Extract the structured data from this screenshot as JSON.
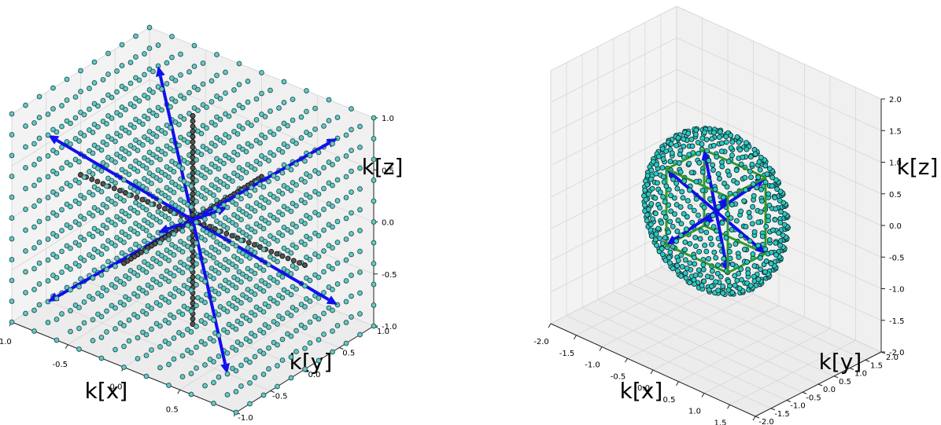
{
  "chart_data": [
    {
      "type": "scatter",
      "projection": "3d",
      "description_of_marks": "cubic lattice of points inside the unit cube, black coordinate axes through origin, blue arrows along cube body diagonals",
      "xlabel": "k[x]",
      "ylabel": "k[y]",
      "zlabel": "k[z]",
      "xlim": [
        -1.0,
        1.0
      ],
      "ylim": [
        -1.0,
        1.0
      ],
      "zlim": [
        -1.0,
        1.0
      ],
      "xticks": [
        "-1.0",
        "-0.5",
        "0.0",
        "0.5",
        "1.0"
      ],
      "yticks": [
        "-1.0",
        "-0.5",
        "0.0",
        "0.5",
        "1.0"
      ],
      "zticks": [
        "-1.0",
        "-0.5",
        "0.0",
        "0.5",
        "1.0"
      ],
      "grid": true,
      "lattice": {
        "min": -1.0,
        "max": 1.0,
        "step": 0.2,
        "color": "#66c9c4",
        "edge": "#1e4e4e"
      },
      "axis_lines": {
        "from": -1.0,
        "to": 1.0,
        "color": "#444444"
      },
      "arrows": {
        "color": "#1010ee",
        "vectors": [
          [
            0.8,
            0.8,
            0.8
          ],
          [
            -0.8,
            -0.8,
            -0.8
          ],
          [
            0.8,
            -0.8,
            0.8
          ],
          [
            -0.8,
            0.8,
            -0.8
          ],
          [
            -0.8,
            0.8,
            0.8
          ],
          [
            0.8,
            -0.8,
            -0.8
          ],
          [
            -0.8,
            -0.8,
            0.8
          ],
          [
            0.8,
            0.8,
            -0.8
          ]
        ]
      }
    },
    {
      "type": "scatter",
      "projection": "3d",
      "description_of_marks": "points on a sphere, green cube wireframe, blue arrows along cube body diagonals",
      "xlabel": "k[x]",
      "ylabel": "k[y]",
      "zlabel": "k[z]",
      "xlim": [
        -2.0,
        2.0
      ],
      "ylim": [
        -2.0,
        2.0
      ],
      "zlim": [
        -2.0,
        2.0
      ],
      "xticks": [
        "-2.0",
        "-1.5",
        "-1.0",
        "-0.5",
        "0.0",
        "0.5",
        "1.0",
        "1.5",
        "2.0"
      ],
      "yticks": [
        "-2.0",
        "-1.5",
        "-1.0",
        "-0.5",
        "0.0",
        "0.5",
        "1.0",
        "1.5",
        "2.0"
      ],
      "zticks": [
        "-2.0",
        "-1.5",
        "-1.0",
        "-0.5",
        "0.0",
        "0.5",
        "1.0",
        "1.5",
        "2.0"
      ],
      "grid": true,
      "sphere": {
        "radius": 1.2,
        "n_points": 620,
        "color": "#2fc9c4",
        "edge": "#0b2f2f"
      },
      "cube": {
        "half_size": 0.6,
        "color": "#2f9a2f"
      },
      "arrows": {
        "color": "#1010ee",
        "vectors": [
          [
            0.6,
            0.6,
            0.6
          ],
          [
            -0.6,
            -0.6,
            -0.6
          ],
          [
            0.6,
            -0.6,
            0.6
          ],
          [
            -0.6,
            0.6,
            -0.6
          ],
          [
            -0.6,
            0.6,
            0.6
          ],
          [
            0.6,
            -0.6,
            -0.6
          ],
          [
            -0.6,
            -0.6,
            0.6
          ],
          [
            0.6,
            0.6,
            -0.6
          ]
        ]
      }
    }
  ]
}
